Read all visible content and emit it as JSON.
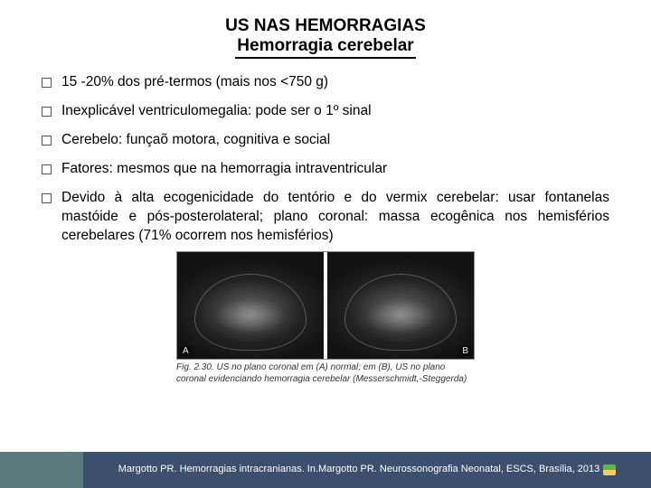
{
  "title": {
    "line1": "US NAS HEMORRAGIAS",
    "line2": "Hemorragia cerebelar"
  },
  "bullets": [
    {
      "text": "15 -20% dos pré-termos (mais nos <750 g)",
      "justify": false
    },
    {
      "text": "Inexplicável ventriculomegalia: pode ser o 1º sinal",
      "justify": false
    },
    {
      "text": "Cerebelo: funçaõ motora, cognitiva e social",
      "justify": false
    },
    {
      "text": "Fatores: mesmos que na hemorragia intraventricular",
      "justify": false
    },
    {
      "text": "Devido à alta ecogenicidade do tentório e do vermix cerebelar: usar fontanelas mastóide e pós-posterolateral; plano coronal: massa ecogênica nos hemisférios cerebelares (71% ocorrem nos hemisférios)",
      "justify": true
    }
  ],
  "figure": {
    "panel_a_label": "A",
    "panel_b_label": "B",
    "caption": "Fig. 2.30. US no plano coronal em (A) normal; em (B), US no plano coronal evidenciando hemorragia cerebelar (Messerschmidt,-Steggerda)"
  },
  "footer": {
    "citation": "Margotto PR. Hemorragias intracranianas. In.Margotto PR. Neurossonografia Neonatal, ESCS, Brasília, 2013",
    "accent_color": "#5a7a7d",
    "bar_color": "#3d4f6e"
  }
}
